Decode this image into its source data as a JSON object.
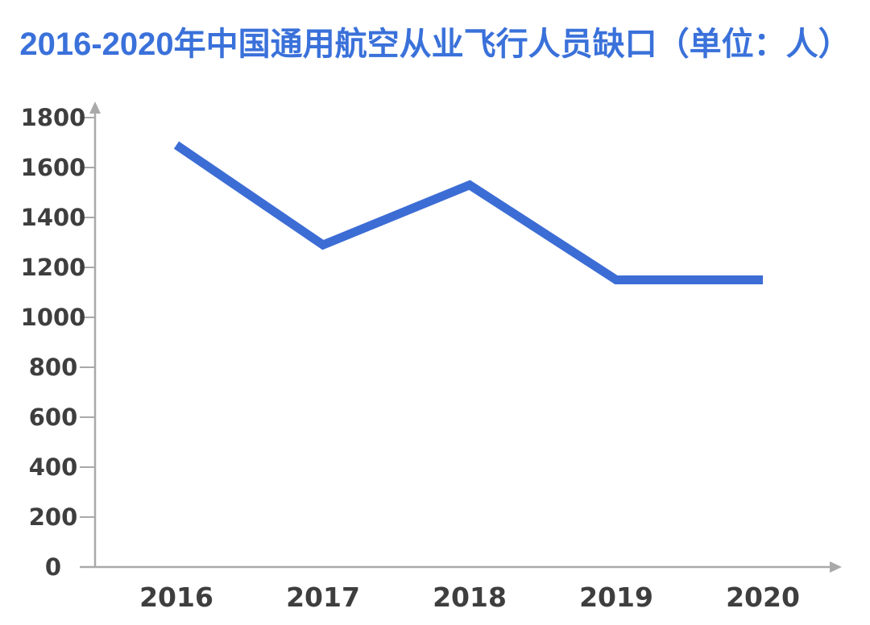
{
  "title": {
    "text": "2016-2020年中国通用航空从业飞行人员缺口（单位：人）",
    "color": "#3a71da"
  },
  "chart_data": {
    "type": "line",
    "title": "2016-2020年中国通用航空从业飞行人员缺口（单位：人）",
    "categories": [
      "2016",
      "2017",
      "2018",
      "2019",
      "2020"
    ],
    "values": [
      1690,
      1290,
      1530,
      1150,
      1150
    ],
    "xlabel": "",
    "ylabel": "",
    "ylim": [
      0,
      1800
    ],
    "ytick_step": 200,
    "ytick_labels": [
      "0",
      "200",
      "400",
      "600",
      "800",
      "1000",
      "1200",
      "1400",
      "1600",
      "1800"
    ],
    "grid": false,
    "legend": "none",
    "line_color": "#3c6dd5",
    "axis_color": "#a9a9a9",
    "tick_label_color": "#3e3e3e",
    "background_color": "#ffffff"
  }
}
